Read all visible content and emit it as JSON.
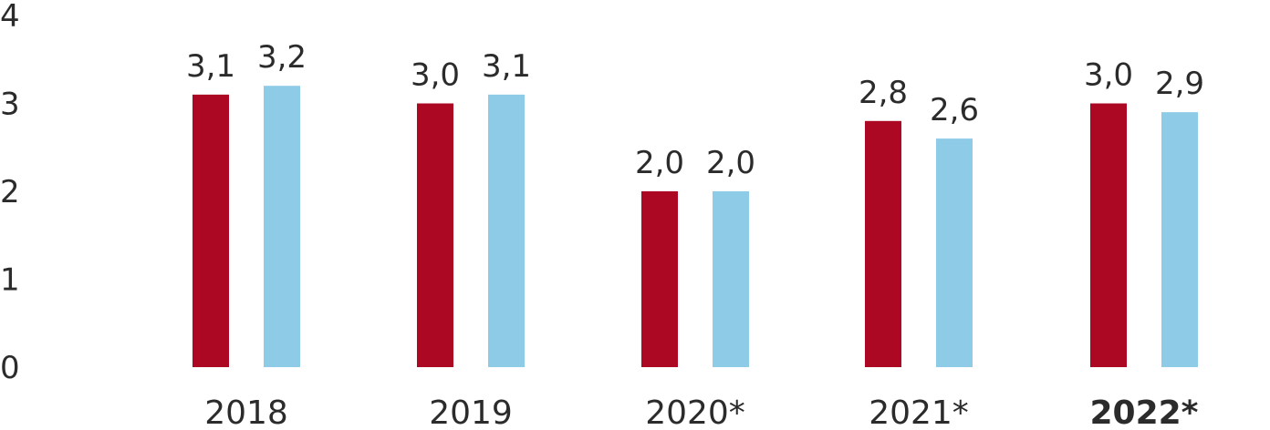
{
  "chart_data": {
    "type": "bar",
    "categories": [
      "2018",
      "2019",
      "2020*",
      "2021*",
      "2022*"
    ],
    "category_emphasis": [
      false,
      false,
      false,
      false,
      true
    ],
    "series": [
      {
        "values": [
          3.1,
          3.0,
          2.0,
          2.8,
          3.0
        ],
        "labels": [
          "3,1",
          "3,0",
          "2,0",
          "2,8",
          "3,0"
        ],
        "color": "#ad0823"
      },
      {
        "values": [
          3.2,
          3.1,
          2.0,
          2.6,
          2.9
        ],
        "labels": [
          "3,2",
          "3,1",
          "2,0",
          "2,6",
          "2,9"
        ],
        "color": "#8dcbe7"
      }
    ],
    "y_ticks": [
      0,
      1,
      2,
      3,
      4
    ],
    "ylim": [
      0,
      4
    ],
    "grid": false,
    "legend": "none"
  }
}
